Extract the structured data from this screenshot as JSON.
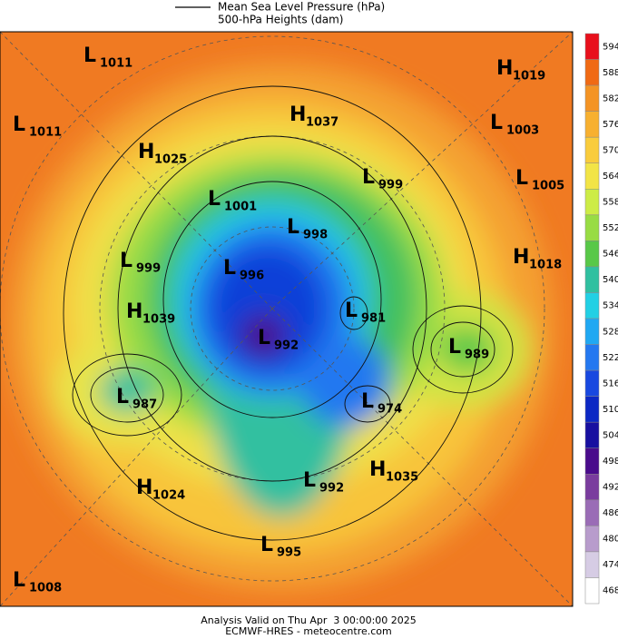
{
  "header": {
    "line_legend": "Mean Sea Level Pressure (hPa)",
    "fill_legend": "500-hPa Heights (dam)"
  },
  "colorbar": {
    "levels": [
      594,
      588,
      582,
      576,
      570,
      564,
      558,
      552,
      546,
      540,
      534,
      528,
      522,
      516,
      510,
      504,
      498,
      492,
      486,
      480,
      474,
      468
    ],
    "colors": [
      "#e8101c",
      "#f06a14",
      "#f49424",
      "#f7b030",
      "#f9cc3c",
      "#f2e446",
      "#cdec46",
      "#98dc44",
      "#58c848",
      "#30c0a0",
      "#22d0e4",
      "#20a8f2",
      "#2478f0",
      "#1848e0",
      "#0c28c4",
      "#1810a0",
      "#4a0c8c",
      "#7a3c9e",
      "#9a6cb6",
      "#b89ccc",
      "#d6cce4",
      "#ffffff"
    ]
  },
  "centers": [
    {
      "kind": "L",
      "pressure": 1011
    },
    {
      "kind": "L",
      "pressure": 1011
    },
    {
      "kind": "H",
      "pressure": 1025
    },
    {
      "kind": "L",
      "pressure": 1001
    },
    {
      "kind": "H",
      "pressure": 1037
    },
    {
      "kind": "L",
      "pressure": 999
    },
    {
      "kind": "L",
      "pressure": 998
    },
    {
      "kind": "L",
      "pressure": 996
    },
    {
      "kind": "L",
      "pressure": 999
    },
    {
      "kind": "H",
      "pressure": 1039
    },
    {
      "kind": "L",
      "pressure": 992
    },
    {
      "kind": "L",
      "pressure": 981
    },
    {
      "kind": "L",
      "pressure": 989
    },
    {
      "kind": "L",
      "pressure": 987
    },
    {
      "kind": "L",
      "pressure": 974
    },
    {
      "kind": "H",
      "pressure": 1035
    },
    {
      "kind": "L",
      "pressure": 992
    },
    {
      "kind": "H",
      "pressure": 1024
    },
    {
      "kind": "L",
      "pressure": 995
    },
    {
      "kind": "L",
      "pressure": 1008
    },
    {
      "kind": "H",
      "pressure": 1019
    },
    {
      "kind": "L",
      "pressure": 1003
    },
    {
      "kind": "L",
      "pressure": 1005
    },
    {
      "kind": "H",
      "pressure": 1018
    }
  ],
  "footer": {
    "valid": "Analysis Valid on Thu Apr  3 00:00:00 2025",
    "source": "ECMWF-HRES - meteocentre.com"
  }
}
